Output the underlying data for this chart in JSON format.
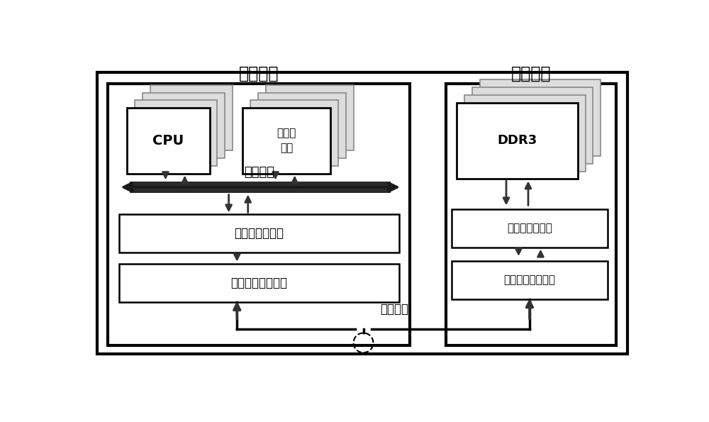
{
  "bg_color": "#ffffff",
  "local_node_label": "本地节点",
  "remote_node_label": "远程节点",
  "cpu_label": "CPU",
  "local_mem_label": "本地存\n储器",
  "system_bus_label": "系统总线",
  "mem_ctrl_label_local": "内存资源控制器",
  "high_speed_label_local": "高速串行通信链路",
  "ddr3_label": "DDR3",
  "mem_ctrl_label_remote": "内存资源控制器",
  "high_speed_label_remote": "高速串行通信链路",
  "transfer_link_label": "传输链路",
  "arrow_color": "#333333",
  "box_ec": "#000000",
  "stacked_ec_back": "#999999",
  "stacked_fc_back": "#e8e8e8",
  "figsize": [
    10.0,
    5.95
  ],
  "dpi": 100
}
